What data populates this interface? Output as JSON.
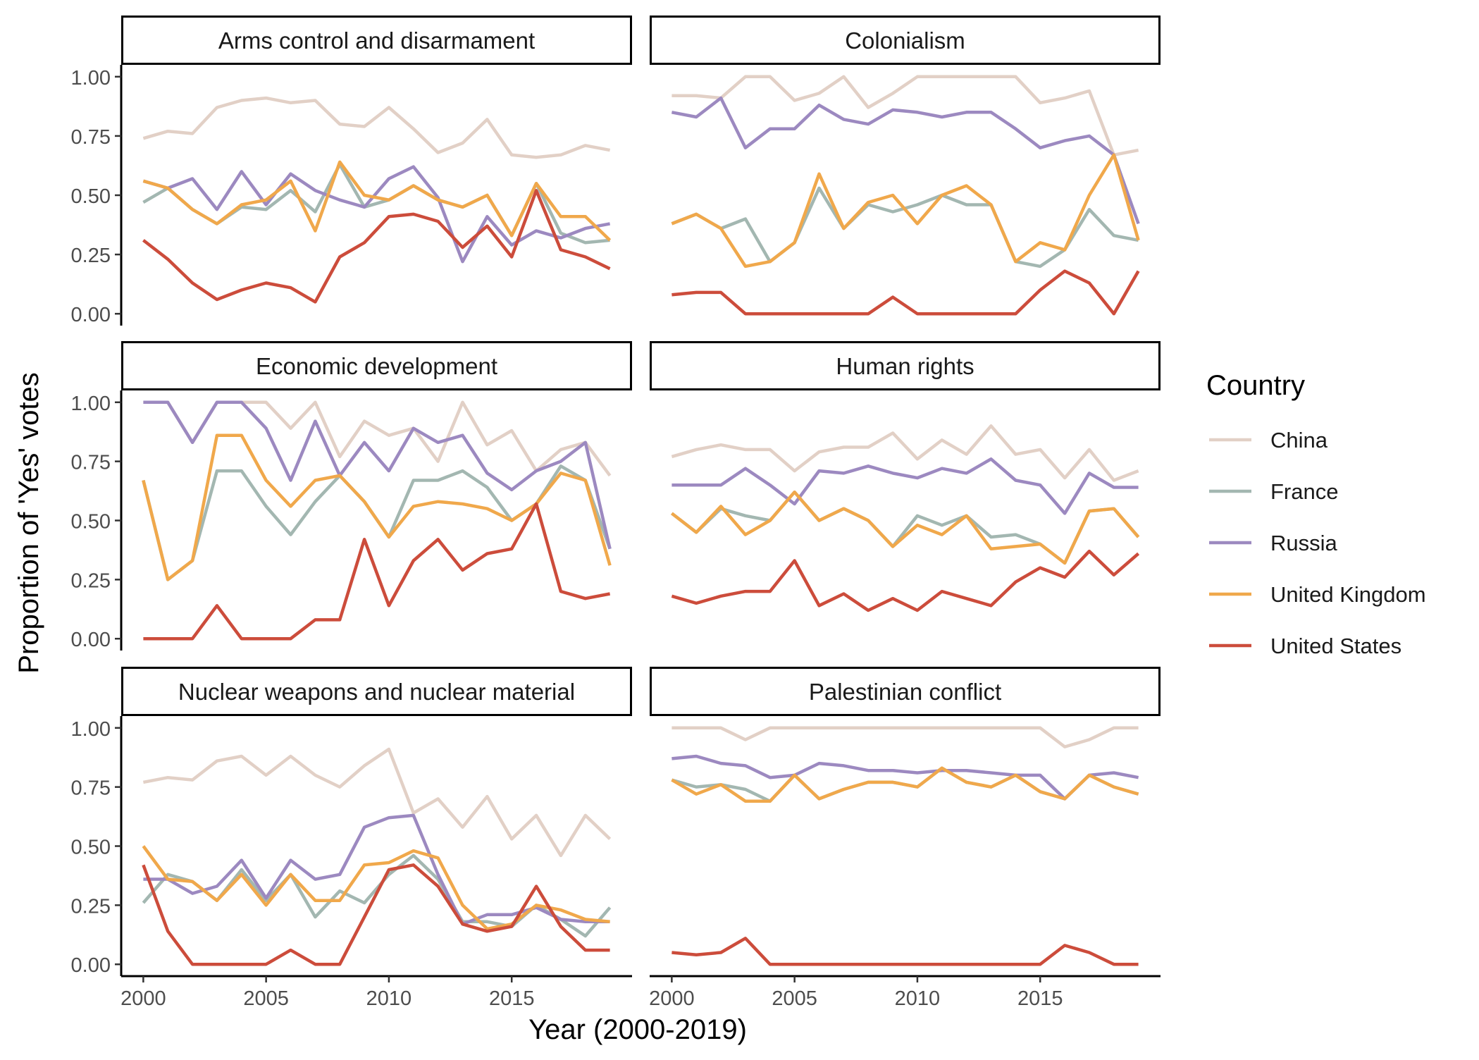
{
  "chart_data": {
    "type": "line",
    "xlabel": "Year (2000-2019)",
    "ylabel": "Proportion of 'Yes' votes",
    "x": [
      2000,
      2001,
      2002,
      2003,
      2004,
      2005,
      2006,
      2007,
      2008,
      2009,
      2010,
      2011,
      2012,
      2013,
      2014,
      2015,
      2016,
      2017,
      2018,
      2019
    ],
    "xticks": [
      2000,
      2005,
      2010,
      2015
    ],
    "yticks": [
      0.0,
      0.25,
      0.5,
      0.75,
      1.0
    ],
    "ytick_labels": [
      "0.00",
      "0.25",
      "0.50",
      "0.75",
      "1.00"
    ],
    "xticks_labels": [
      "2000",
      "2005",
      "2010",
      "2015"
    ],
    "ylim": [
      -0.05,
      1.05
    ],
    "xlim": [
      1999.1,
      2019.9
    ],
    "grid": false,
    "legend": {
      "title": "Country",
      "position": "right",
      "entries": [
        "China",
        "France",
        "Russia",
        "United Kingdom",
        "United States"
      ]
    },
    "series_colors": {
      "China": "#e2d0c6",
      "France": "#a3b7b1",
      "Russia": "#9c89c0",
      "United Kingdom": "#f0a84b",
      "United States": "#cc4c3b"
    },
    "facets": [
      {
        "title": "Arms control and disarmament",
        "series": [
          {
            "name": "China",
            "values": [
              0.74,
              0.77,
              0.76,
              0.87,
              0.9,
              0.91,
              0.89,
              0.9,
              0.8,
              0.79,
              0.87,
              0.78,
              0.68,
              0.72,
              0.82,
              0.67,
              0.66,
              0.67,
              0.71,
              0.69
            ]
          },
          {
            "name": "France",
            "values": [
              0.47,
              0.53,
              0.44,
              0.38,
              0.45,
              0.44,
              0.52,
              0.43,
              0.63,
              0.45,
              0.48,
              0.54,
              0.48,
              0.45,
              0.5,
              0.33,
              0.55,
              0.34,
              0.3,
              0.31
            ]
          },
          {
            "name": "Russia",
            "values": [
              0.56,
              0.53,
              0.57,
              0.44,
              0.6,
              0.46,
              0.59,
              0.52,
              0.48,
              0.45,
              0.57,
              0.62,
              0.49,
              0.22,
              0.41,
              0.29,
              0.35,
              0.32,
              0.36,
              0.38
            ]
          },
          {
            "name": "United Kingdom",
            "values": [
              0.56,
              0.53,
              0.44,
              0.38,
              0.46,
              0.48,
              0.56,
              0.35,
              0.64,
              0.5,
              0.48,
              0.54,
              0.48,
              0.45,
              0.5,
              0.33,
              0.55,
              0.41,
              0.41,
              0.31
            ]
          },
          {
            "name": "United States",
            "values": [
              0.31,
              0.23,
              0.13,
              0.06,
              0.1,
              0.13,
              0.11,
              0.05,
              0.24,
              0.3,
              0.41,
              0.42,
              0.39,
              0.28,
              0.37,
              0.24,
              0.52,
              0.27,
              0.24,
              0.19
            ]
          }
        ]
      },
      {
        "title": "Colonialism",
        "series": [
          {
            "name": "China",
            "values": [
              0.92,
              0.92,
              0.91,
              1.0,
              1.0,
              0.9,
              0.93,
              1.0,
              0.87,
              0.93,
              1.0,
              1.0,
              1.0,
              1.0,
              1.0,
              0.89,
              0.91,
              0.94,
              0.67,
              0.69
            ]
          },
          {
            "name": "France",
            "values": [
              0.38,
              0.42,
              0.36,
              0.4,
              0.22,
              0.3,
              0.53,
              0.36,
              0.46,
              0.43,
              0.46,
              0.5,
              0.46,
              0.46,
              0.22,
              0.2,
              0.27,
              0.44,
              0.33,
              0.31
            ]
          },
          {
            "name": "Russia",
            "values": [
              0.85,
              0.83,
              0.91,
              0.7,
              0.78,
              0.78,
              0.88,
              0.82,
              0.8,
              0.86,
              0.85,
              0.83,
              0.85,
              0.85,
              0.78,
              0.7,
              0.73,
              0.75,
              0.67,
              0.38
            ]
          },
          {
            "name": "United Kingdom",
            "values": [
              0.38,
              0.42,
              0.36,
              0.2,
              0.22,
              0.3,
              0.59,
              0.36,
              0.47,
              0.5,
              0.38,
              0.5,
              0.54,
              0.46,
              0.22,
              0.3,
              0.27,
              0.5,
              0.67,
              0.31
            ]
          },
          {
            "name": "United States",
            "values": [
              0.08,
              0.09,
              0.09,
              0.0,
              0.0,
              0.0,
              0.0,
              0.0,
              0.0,
              0.07,
              0.0,
              0.0,
              0.0,
              0.0,
              0.0,
              0.1,
              0.18,
              0.13,
              0.0,
              0.18
            ]
          }
        ]
      },
      {
        "title": "Economic development",
        "series": [
          {
            "name": "China",
            "values": [
              1.0,
              1.0,
              0.83,
              1.0,
              1.0,
              1.0,
              0.89,
              1.0,
              0.77,
              0.92,
              0.86,
              0.89,
              0.75,
              1.0,
              0.82,
              0.88,
              0.71,
              0.8,
              0.83,
              0.69
            ]
          },
          {
            "name": "France",
            "values": [
              0.67,
              0.25,
              0.33,
              0.71,
              0.71,
              0.56,
              0.44,
              0.58,
              0.69,
              0.58,
              0.43,
              0.67,
              0.67,
              0.71,
              0.64,
              0.5,
              0.57,
              0.73,
              0.67,
              0.38
            ]
          },
          {
            "name": "Russia",
            "values": [
              1.0,
              1.0,
              0.83,
              1.0,
              1.0,
              0.89,
              0.67,
              0.92,
              0.69,
              0.83,
              0.71,
              0.89,
              0.83,
              0.86,
              0.7,
              0.63,
              0.71,
              0.75,
              0.83,
              0.38
            ]
          },
          {
            "name": "United Kingdom",
            "values": [
              0.67,
              0.25,
              0.33,
              0.86,
              0.86,
              0.67,
              0.56,
              0.67,
              0.69,
              0.58,
              0.43,
              0.56,
              0.58,
              0.57,
              0.55,
              0.5,
              0.57,
              0.7,
              0.67,
              0.31
            ]
          },
          {
            "name": "United States",
            "values": [
              0.0,
              0.0,
              0.0,
              0.14,
              0.0,
              0.0,
              0.0,
              0.08,
              0.08,
              0.42,
              0.14,
              0.33,
              0.42,
              0.29,
              0.36,
              0.38,
              0.57,
              0.2,
              0.17,
              0.19
            ]
          }
        ]
      },
      {
        "title": "Human rights",
        "series": [
          {
            "name": "China",
            "values": [
              0.77,
              0.8,
              0.82,
              0.8,
              0.8,
              0.71,
              0.79,
              0.81,
              0.81,
              0.87,
              0.76,
              0.84,
              0.78,
              0.9,
              0.78,
              0.8,
              0.68,
              0.8,
              0.67,
              0.71
            ]
          },
          {
            "name": "France",
            "values": [
              0.53,
              0.45,
              0.55,
              0.52,
              0.5,
              0.62,
              0.5,
              0.55,
              0.5,
              0.39,
              0.52,
              0.48,
              0.52,
              0.43,
              0.44,
              0.4,
              0.32,
              0.54,
              0.55,
              0.43
            ]
          },
          {
            "name": "Russia",
            "values": [
              0.65,
              0.65,
              0.65,
              0.72,
              0.65,
              0.57,
              0.71,
              0.7,
              0.73,
              0.7,
              0.68,
              0.72,
              0.7,
              0.76,
              0.67,
              0.65,
              0.53,
              0.7,
              0.64,
              0.64
            ]
          },
          {
            "name": "United Kingdom",
            "values": [
              0.53,
              0.45,
              0.56,
              0.44,
              0.5,
              0.62,
              0.5,
              0.55,
              0.5,
              0.39,
              0.48,
              0.44,
              0.52,
              0.38,
              0.39,
              0.4,
              0.32,
              0.54,
              0.55,
              0.43
            ]
          },
          {
            "name": "United States",
            "values": [
              0.18,
              0.15,
              0.18,
              0.2,
              0.2,
              0.33,
              0.14,
              0.19,
              0.12,
              0.17,
              0.12,
              0.2,
              0.17,
              0.14,
              0.24,
              0.3,
              0.26,
              0.37,
              0.27,
              0.36
            ]
          }
        ]
      },
      {
        "title": "Nuclear weapons and nuclear material",
        "series": [
          {
            "name": "China",
            "values": [
              0.77,
              0.79,
              0.78,
              0.86,
              0.88,
              0.8,
              0.88,
              0.8,
              0.75,
              0.84,
              0.91,
              0.64,
              0.7,
              0.58,
              0.71,
              0.53,
              0.63,
              0.46,
              0.63,
              0.53
            ]
          },
          {
            "name": "France",
            "values": [
              0.26,
              0.38,
              0.35,
              0.27,
              0.4,
              0.27,
              0.38,
              0.2,
              0.31,
              0.26,
              0.38,
              0.46,
              0.36,
              0.18,
              0.18,
              0.16,
              0.25,
              0.19,
              0.12,
              0.24
            ]
          },
          {
            "name": "Russia",
            "values": [
              0.36,
              0.36,
              0.3,
              0.33,
              0.44,
              0.28,
              0.44,
              0.36,
              0.38,
              0.58,
              0.62,
              0.63,
              0.38,
              0.17,
              0.21,
              0.21,
              0.24,
              0.19,
              0.18,
              0.18
            ]
          },
          {
            "name": "United Kingdom",
            "values": [
              0.5,
              0.36,
              0.35,
              0.27,
              0.38,
              0.25,
              0.38,
              0.27,
              0.27,
              0.42,
              0.43,
              0.48,
              0.45,
              0.25,
              0.15,
              0.17,
              0.25,
              0.23,
              0.19,
              0.18
            ]
          },
          {
            "name": "United States",
            "values": [
              0.42,
              0.14,
              0.0,
              0.0,
              0.0,
              0.0,
              0.06,
              0.0,
              0.0,
              0.2,
              0.4,
              0.42,
              0.33,
              0.17,
              0.14,
              0.16,
              0.33,
              0.16,
              0.06,
              0.06
            ]
          }
        ]
      },
      {
        "title": "Palestinian conflict",
        "series": [
          {
            "name": "China",
            "values": [
              1.0,
              1.0,
              1.0,
              0.95,
              1.0,
              1.0,
              1.0,
              1.0,
              1.0,
              1.0,
              1.0,
              1.0,
              1.0,
              1.0,
              1.0,
              1.0,
              0.92,
              0.95,
              1.0,
              1.0
            ]
          },
          {
            "name": "France",
            "values": [
              0.78,
              0.75,
              0.76,
              0.74,
              0.69,
              0.8,
              0.7,
              0.74,
              0.77,
              0.77,
              0.75,
              0.83,
              0.77,
              0.75,
              0.8,
              0.73,
              0.7,
              0.8,
              0.75,
              0.72
            ]
          },
          {
            "name": "Russia",
            "values": [
              0.87,
              0.88,
              0.85,
              0.84,
              0.79,
              0.8,
              0.85,
              0.84,
              0.82,
              0.82,
              0.81,
              0.82,
              0.82,
              0.81,
              0.8,
              0.8,
              0.7,
              0.8,
              0.81,
              0.79
            ]
          },
          {
            "name": "United Kingdom",
            "values": [
              0.78,
              0.72,
              0.76,
              0.69,
              0.69,
              0.8,
              0.7,
              0.74,
              0.77,
              0.77,
              0.75,
              0.83,
              0.77,
              0.75,
              0.8,
              0.73,
              0.7,
              0.8,
              0.75,
              0.72
            ]
          },
          {
            "name": "United States",
            "values": [
              0.05,
              0.04,
              0.05,
              0.11,
              0.0,
              0.0,
              0.0,
              0.0,
              0.0,
              0.0,
              0.0,
              0.0,
              0.0,
              0.0,
              0.0,
              0.0,
              0.08,
              0.05,
              0.0,
              0.0
            ]
          }
        ]
      }
    ]
  }
}
